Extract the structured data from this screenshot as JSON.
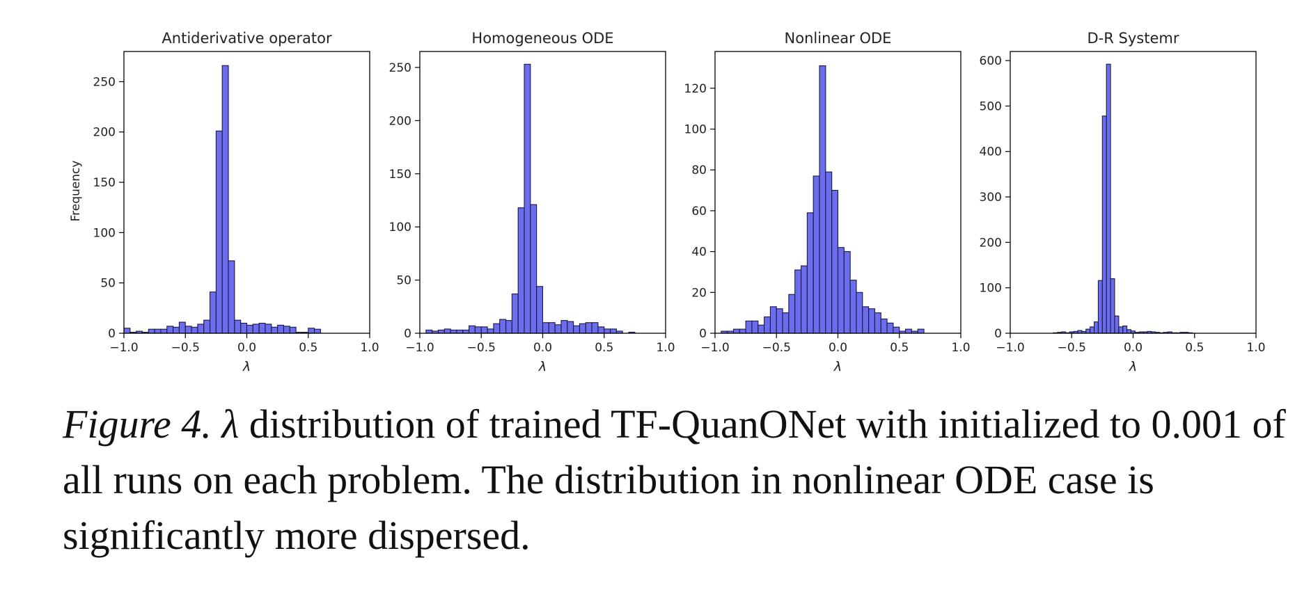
{
  "panels": [
    {
      "title": "Antiderivative operator",
      "ylabel": "Frequency",
      "xlabel": "λ",
      "ylim": [
        0,
        280
      ],
      "yticks": [
        0,
        50,
        100,
        150,
        200,
        250
      ],
      "xlim": [
        -1.0,
        1.0
      ],
      "xticks": [
        "−1.0",
        "−0.5",
        "0.0",
        "0.5",
        "1.0"
      ],
      "bin_start": -1.0,
      "bin_width": 0.05,
      "values": [
        5,
        1,
        2,
        1,
        4,
        4,
        4,
        7,
        6,
        11,
        7,
        6,
        9,
        13,
        41,
        201,
        266,
        72,
        13,
        10,
        8,
        9,
        10,
        9,
        6,
        8,
        7,
        6,
        1,
        1,
        5,
        4
      ]
    },
    {
      "title": "Homogeneous ODE",
      "ylabel": "",
      "xlabel": "λ",
      "ylim": [
        0,
        265
      ],
      "yticks": [
        0,
        50,
        100,
        150,
        200,
        250
      ],
      "xlim": [
        -1.0,
        1.0
      ],
      "xticks": [
        "−1.0",
        "−0.5",
        "0.0",
        "0.5",
        "1.0"
      ],
      "bin_start": -0.95,
      "bin_width": 0.05,
      "values": [
        3,
        2,
        3,
        4,
        3,
        3,
        3,
        7,
        6,
        6,
        4,
        9,
        13,
        12,
        37,
        118,
        253,
        121,
        44,
        10,
        10,
        8,
        12,
        11,
        7,
        9,
        10,
        10,
        6,
        4,
        4,
        2,
        0,
        1
      ]
    },
    {
      "title": "Nonlinear ODE",
      "ylabel": "",
      "xlabel": "λ",
      "ylim": [
        0,
        138
      ],
      "yticks": [
        0,
        20,
        40,
        60,
        80,
        100,
        120
      ],
      "xlim": [
        -1.0,
        1.0
      ],
      "xticks": [
        "−1.0",
        "−0.5",
        "0.0",
        "0.5",
        "1.0"
      ],
      "bin_start": -0.95,
      "bin_width": 0.05,
      "values": [
        1,
        1,
        2,
        2,
        6,
        6,
        4,
        8,
        13,
        12,
        10,
        19,
        31,
        33,
        59,
        77,
        131,
        79,
        70,
        42,
        40,
        26,
        20,
        13,
        12,
        10,
        7,
        5,
        3,
        1,
        2,
        1,
        2
      ]
    },
    {
      "title": "D-R Systemr",
      "ylabel": "",
      "xlabel": "λ",
      "ylim": [
        0,
        620
      ],
      "yticks": [
        0,
        100,
        200,
        300,
        400,
        500,
        600
      ],
      "xlim": [
        -1.0,
        1.0
      ],
      "xticks": [
        "−1.0",
        "−0.5",
        "0.0",
        "0.5",
        "1.0"
      ],
      "bin_start": -0.65,
      "bin_width": 0.0333,
      "values": [
        1,
        2,
        3,
        1,
        3,
        4,
        6,
        4,
        9,
        14,
        25,
        116,
        478,
        592,
        120,
        38,
        14,
        16,
        8,
        5,
        2,
        3,
        3,
        4,
        3,
        2,
        1,
        2,
        3,
        1,
        1,
        2,
        2,
        1
      ]
    }
  ],
  "chart_data": [
    {
      "type": "bar",
      "title": "Antiderivative operator",
      "ylabel": "Frequency",
      "xlabel": "λ",
      "ylim": [
        0,
        280
      ],
      "xlim": [
        -1.0,
        1.0
      ]
    },
    {
      "type": "bar",
      "title": "Homogeneous ODE",
      "xlabel": "λ",
      "ylim": [
        0,
        265
      ],
      "xlim": [
        -1.0,
        1.0
      ]
    },
    {
      "type": "bar",
      "title": "Nonlinear ODE",
      "xlabel": "λ",
      "ylim": [
        0,
        138
      ],
      "xlim": [
        -1.0,
        1.0
      ]
    },
    {
      "type": "bar",
      "title": "D-R Systemr",
      "xlabel": "λ",
      "ylim": [
        0,
        620
      ],
      "xlim": [
        -1.0,
        1.0
      ]
    }
  ],
  "colors": {
    "bar_fill": "#6464ee",
    "bar_edge": "#1a1a3a"
  },
  "caption": {
    "label": "Figure 4.",
    "symbol": "λ",
    "text": "distribution of trained TF-QuanONet with initialized to 0.001 of all runs on each problem. The distribution in nonlinear ODE case is significantly more dispersed."
  }
}
